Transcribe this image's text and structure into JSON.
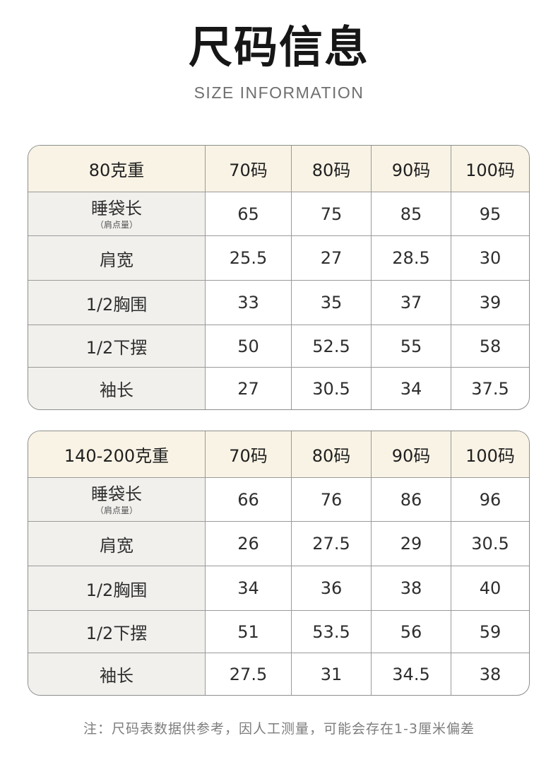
{
  "header": {
    "title": "尺码信息",
    "subtitle": "SIZE INFORMATION"
  },
  "tables": [
    {
      "weight_label": "80克重",
      "sizes": [
        "70码",
        "80码",
        "90码",
        "100码"
      ],
      "rows": [
        {
          "label": "睡袋长",
          "sublabel": "（肩点量）",
          "values": [
            "65",
            "75",
            "85",
            "95"
          ]
        },
        {
          "label": "肩宽",
          "values": [
            "25.5",
            "27",
            "28.5",
            "30"
          ]
        },
        {
          "label": "1/2胸围",
          "values": [
            "33",
            "35",
            "37",
            "39"
          ]
        },
        {
          "label": "1/2下摆",
          "values": [
            "50",
            "52.5",
            "55",
            "58"
          ]
        },
        {
          "label": "袖长",
          "values": [
            "27",
            "30.5",
            "34",
            "37.5"
          ]
        }
      ]
    },
    {
      "weight_label": "140-200克重",
      "sizes": [
        "70码",
        "80码",
        "90码",
        "100码"
      ],
      "rows": [
        {
          "label": "睡袋长",
          "sublabel": "（肩点量）",
          "values": [
            "66",
            "76",
            "86",
            "96"
          ]
        },
        {
          "label": "肩宽",
          "values": [
            "26",
            "27.5",
            "29",
            "30.5"
          ]
        },
        {
          "label": "1/2胸围",
          "values": [
            "34",
            "36",
            "38",
            "40"
          ]
        },
        {
          "label": "1/2下摆",
          "values": [
            "51",
            "53.5",
            "56",
            "59"
          ]
        },
        {
          "label": "袖长",
          "values": [
            "27.5",
            "31",
            "34.5",
            "38"
          ]
        }
      ]
    }
  ],
  "footnote": "注：尺码表数据供参考，因人工测量，可能会存在1-3厘米偏差",
  "colors": {
    "header_bg": "#f9f3e5",
    "label_bg": "#f1f0ed",
    "border": "#8d8d8d"
  }
}
